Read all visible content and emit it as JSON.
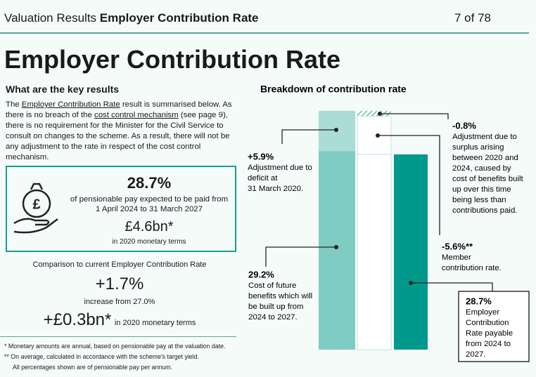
{
  "header": {
    "section": "Valuation Results",
    "title": "Employer Contribution Rate",
    "page": "7 of 78"
  },
  "title": "Employer Contribution Rate",
  "key_results": {
    "heading": "What are the key results",
    "paragraph": [
      "The ",
      "Employer Contribution Rate",
      " result is summarised below. As there is no breach of the ",
      "cost control mechanism",
      " (see page 9), there is no requirement for the Minister for the Civil Service to consult on changes to the scheme.  As a result, there will not be any adjustment to the rate in respect of the cost control mechanism."
    ],
    "box": {
      "rate": "28.7%",
      "line1": "of pensionable pay expected to be paid from",
      "line2": "1 April 2024 to 31 March 2027",
      "amount": "£4.6bn*",
      "amount_note": "in 2020 monetary terms"
    },
    "comparison": {
      "heading": "Comparison to current Employer Contribution Rate",
      "change": "+1.7%",
      "change_note": "increase from 27.0%",
      "amount": "+£0.3bn*",
      "amount_note": "in 2020 monetary terms"
    },
    "footnotes": [
      "*  Monetary amounts are annual, based on pensionable pay at the valuation date.",
      "** On average, calculated in accordance with the scheme's target yield.",
      "All percentages shown are of pensionable pay per annum."
    ]
  },
  "chart_data": {
    "type": "waterfall",
    "title": "Breakdown of contribution rate",
    "values": [
      29.2,
      5.9,
      -0.8,
      -5.6,
      28.7
    ],
    "value_labels": [
      "29.2%",
      "+5.9%",
      "-0.8%",
      "-5.6%**",
      "28.7%"
    ],
    "colors": [
      "#7fccc3",
      "#a9ddd6",
      "#2fa596",
      "#ffffff",
      "#00998c"
    ],
    "descriptions": [
      [
        "Cost of future",
        "benefits which will",
        "be built up from",
        "2024 to 2027."
      ],
      [
        "Adjustment due to",
        "deficit at",
        "31 March 2020."
      ],
      [
        "Adjustment due to",
        "surplus arising",
        "between 2020 and",
        "2024, caused by",
        "cost of benefits built",
        "up over this time",
        "being less than",
        "contributions paid."
      ],
      [
        "Member",
        "contribution rate."
      ],
      [
        "Employer",
        "Contribution",
        "Rate payable",
        "from 2024 to",
        "2027."
      ]
    ]
  }
}
